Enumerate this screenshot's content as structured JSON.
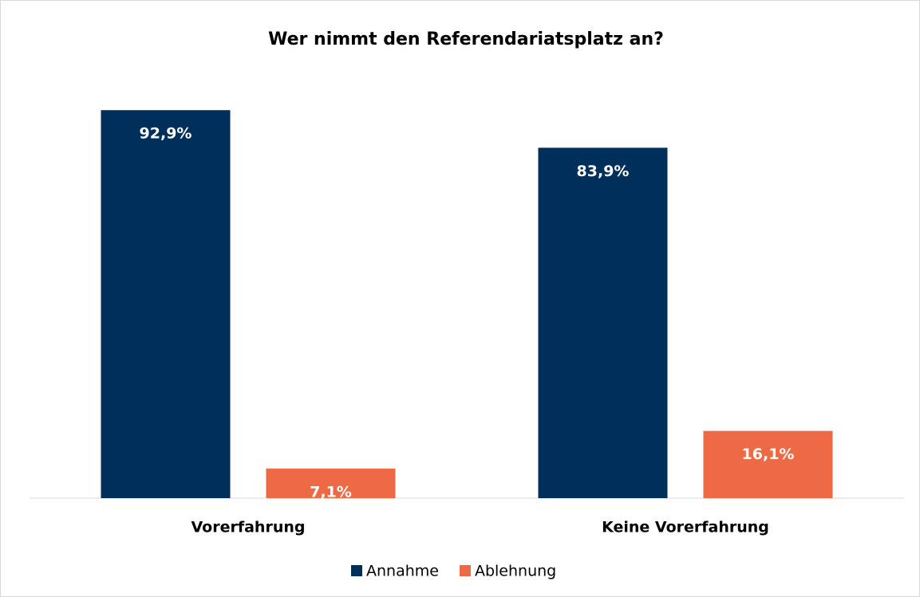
{
  "chart_data": {
    "type": "bar",
    "title": "Wer nimmt den Referendariatsplatz an?",
    "categories": [
      "Vorerfahrung",
      "Keine Vorerfahrung"
    ],
    "series": [
      {
        "name": "Annahme",
        "color": "#002f5c",
        "values": [
          92.9,
          83.9
        ],
        "value_labels": [
          "92,9%",
          "83,9%"
        ]
      },
      {
        "name": "Ablehnung",
        "color": "#ee6a45",
        "values": [
          7.1,
          16.1
        ],
        "value_labels": [
          "7,1%",
          "16,1%"
        ]
      }
    ],
    "ylim": [
      0,
      100
    ],
    "legend": "bottom"
  }
}
